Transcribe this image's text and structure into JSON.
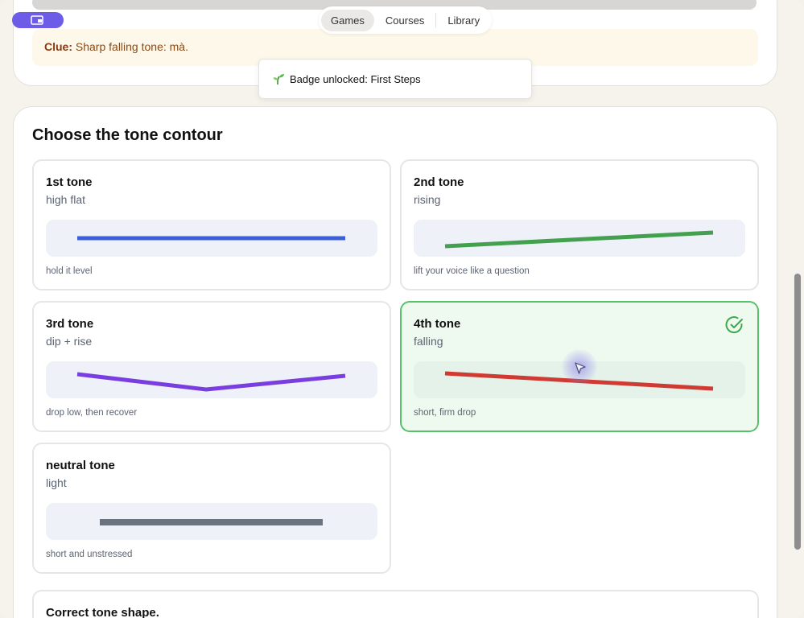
{
  "nav": {
    "tabs": [
      {
        "label": "Games",
        "active": true
      },
      {
        "label": "Courses",
        "active": false
      },
      {
        "label": "Library",
        "active": false
      }
    ]
  },
  "clue": {
    "label": "Clue:",
    "text": "Sharp falling tone: mà."
  },
  "toast": {
    "icon": "sprout-icon",
    "text": "Badge unlocked: First Steps"
  },
  "section": {
    "title": "Choose the tone contour"
  },
  "options": [
    {
      "title": "1st tone",
      "subtitle": "high flat",
      "hint": "hold it level",
      "color": "#3a5fd9",
      "selected": false
    },
    {
      "title": "2nd tone",
      "subtitle": "rising",
      "hint": "lift your voice like a question",
      "color": "#43a04f",
      "selected": false
    },
    {
      "title": "3rd tone",
      "subtitle": "dip + rise",
      "hint": "drop low, then recover",
      "color": "#7a3ee0",
      "selected": false
    },
    {
      "title": "4th tone",
      "subtitle": "falling",
      "hint": "short, firm drop",
      "color": "#cf3a33",
      "selected": true
    },
    {
      "title": "neutral tone",
      "subtitle": "light",
      "hint": "short and unstressed",
      "color": "#6b7280",
      "selected": false
    }
  ],
  "feedback": {
    "text": "Correct tone shape."
  },
  "colors": {
    "accent": "#6d5ce8",
    "success": "#58c06a"
  }
}
